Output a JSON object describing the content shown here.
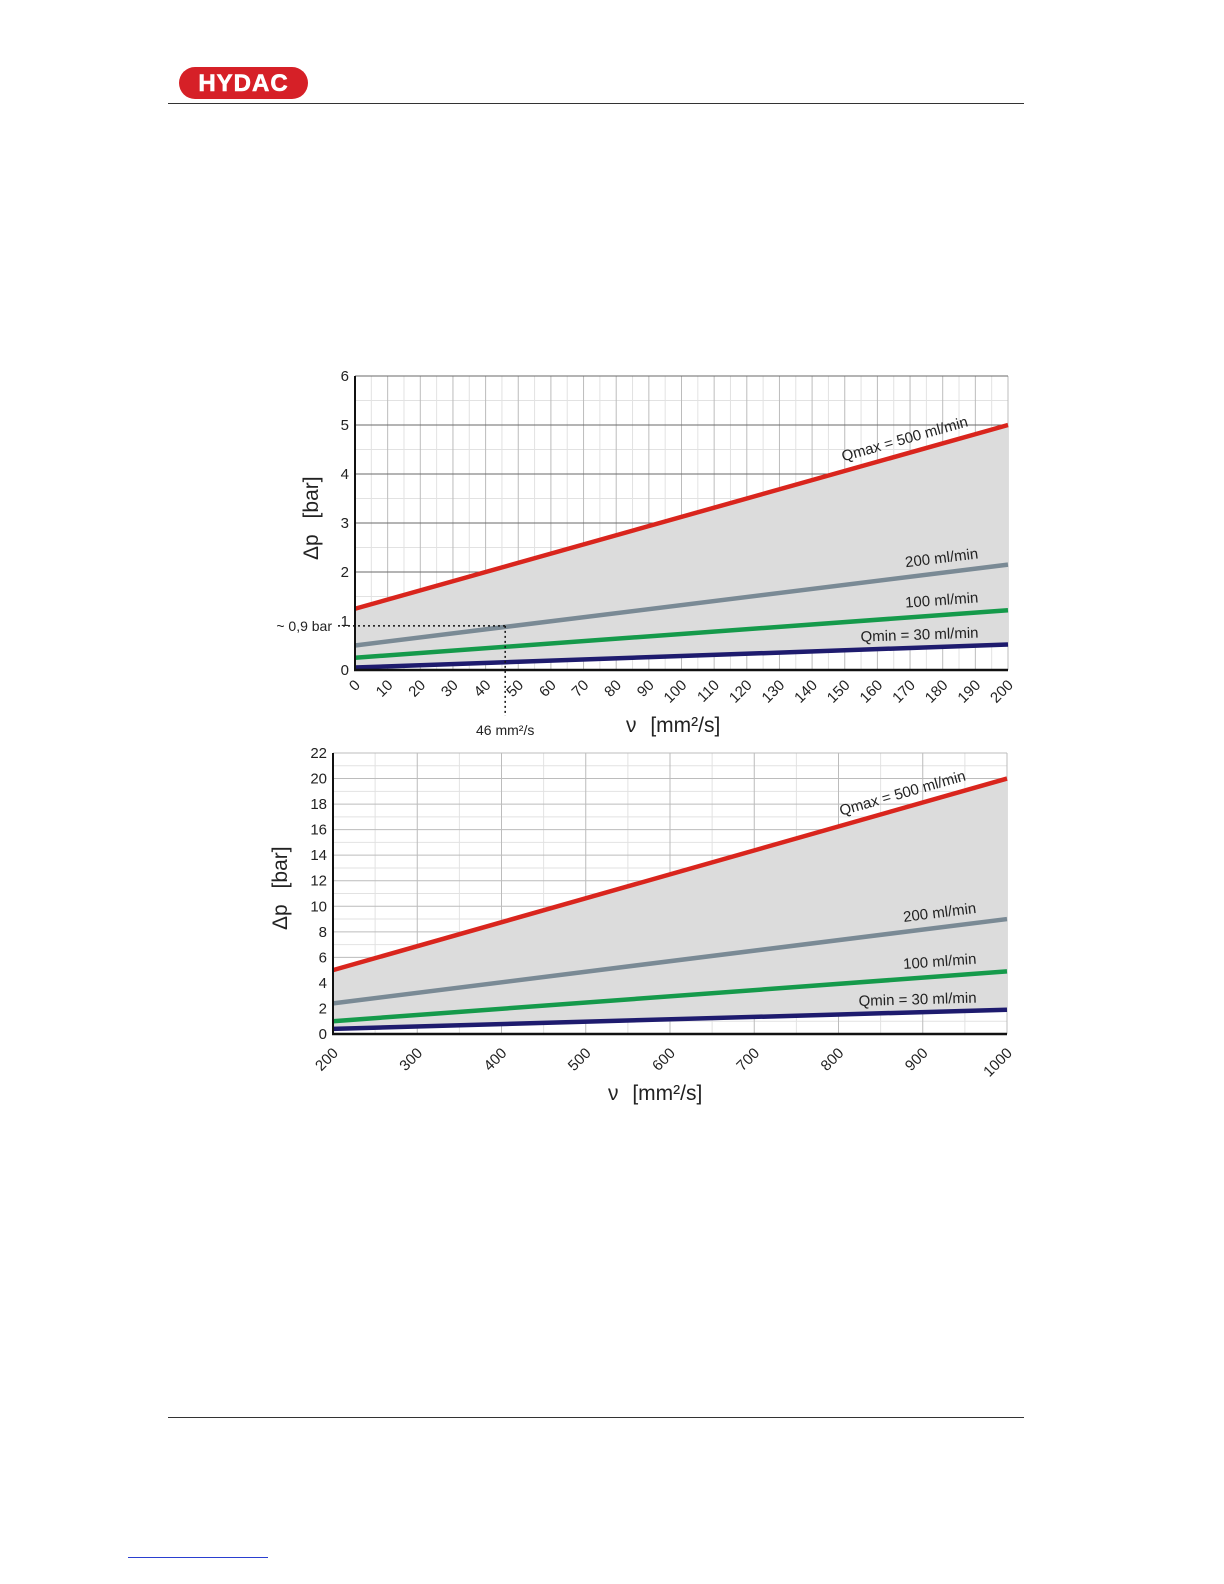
{
  "header": {
    "logo_text": "HYDAC"
  },
  "colors": {
    "brand_red": "#d62027",
    "red": "#d9251d",
    "gray": "#7a8a95",
    "green": "#159a4b",
    "navy": "#1e1b6e",
    "fill": "#dcdcdc"
  },
  "chart_data": [
    {
      "type": "line",
      "ylabel_symbol": "Δp",
      "ylabel_unit": "[bar]",
      "xlabel_symbol": "ν",
      "xlabel_unit": "[mm²/s]",
      "xlim": [
        0,
        200
      ],
      "ylim": [
        0,
        6
      ],
      "xticks": [
        0,
        10,
        20,
        30,
        40,
        50,
        60,
        70,
        80,
        90,
        100,
        110,
        120,
        130,
        140,
        150,
        160,
        170,
        180,
        190,
        200
      ],
      "yticks": [
        0,
        1,
        2,
        3,
        4,
        5,
        6
      ],
      "x": [
        0,
        200
      ],
      "series": [
        {
          "name": "Qmax = 500 ml/min",
          "color": "#d9251d",
          "values": [
            1.25,
            5.0
          ]
        },
        {
          "name": "200 ml/min",
          "color": "#7a8a95",
          "values": [
            0.5,
            2.15
          ]
        },
        {
          "name": "100 ml/min",
          "color": "#159a4b",
          "values": [
            0.25,
            1.22
          ]
        },
        {
          "name": "Qmin = 30 ml/min",
          "color": "#1e1b6e",
          "values": [
            0.05,
            0.52
          ]
        }
      ],
      "annotation": {
        "x": 46,
        "y": 0.9,
        "y_label": "~ 0,9 bar",
        "x_label": "46 mm²/s"
      },
      "grid": true
    },
    {
      "type": "line",
      "ylabel_symbol": "Δp",
      "ylabel_unit": "[bar]",
      "xlabel_symbol": "ν",
      "xlabel_unit": "[mm²/s]",
      "xlim": [
        200,
        1000
      ],
      "ylim": [
        0,
        22
      ],
      "xticks": [
        200,
        300,
        400,
        500,
        600,
        700,
        800,
        900,
        1000
      ],
      "yticks": [
        0,
        2,
        4,
        6,
        8,
        10,
        12,
        14,
        16,
        18,
        20,
        22
      ],
      "x": [
        200,
        1000
      ],
      "series": [
        {
          "name": "Qmax = 500 ml/min",
          "color": "#d9251d",
          "values": [
            5.0,
            20.0
          ]
        },
        {
          "name": "200 ml/min",
          "color": "#7a8a95",
          "values": [
            2.4,
            9.0
          ]
        },
        {
          "name": "100 ml/min",
          "color": "#159a4b",
          "values": [
            1.0,
            4.9
          ]
        },
        {
          "name": "Qmin = 30 ml/min",
          "color": "#1e1b6e",
          "values": [
            0.4,
            1.9
          ]
        }
      ],
      "grid": true
    }
  ]
}
